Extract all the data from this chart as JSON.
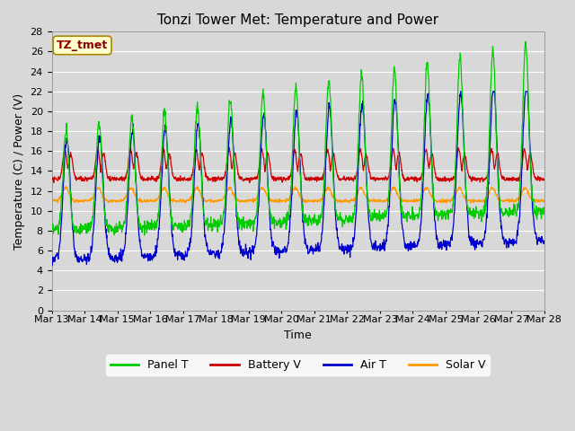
{
  "title": "Tonzi Tower Met: Temperature and Power",
  "xlabel": "Time",
  "ylabel": "Temperature (C) / Power (V)",
  "annotation": "TZ_tmet",
  "ylim": [
    0,
    28
  ],
  "yticks": [
    0,
    2,
    4,
    6,
    8,
    10,
    12,
    14,
    16,
    18,
    20,
    22,
    24,
    26,
    28
  ],
  "xtick_labels": [
    "Mar 13",
    "Mar 14",
    "Mar 15",
    "Mar 16",
    "Mar 17",
    "Mar 18",
    "Mar 19",
    "Mar 20",
    "Mar 21",
    "Mar 22",
    "Mar 23",
    "Mar 24",
    "Mar 25",
    "Mar 26",
    "Mar 27",
    "Mar 28"
  ],
  "colors": {
    "Panel T": "#00CC00",
    "Battery V": "#CC0000",
    "Air T": "#0000CC",
    "Solar V": "#FF9900"
  },
  "background_color": "#D8D8D8",
  "plot_bg_color": "#D8D8D8",
  "grid_color": "#FFFFFF",
  "title_fontsize": 11,
  "label_fontsize": 9,
  "tick_fontsize": 8,
  "n_days": 15,
  "pts_per_day": 96
}
